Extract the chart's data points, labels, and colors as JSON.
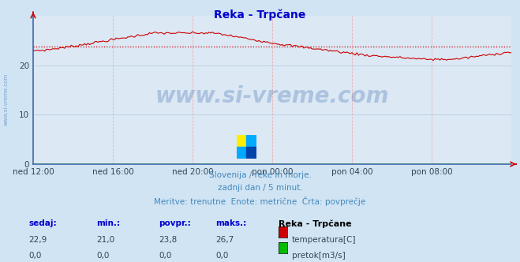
{
  "title": "Reka - Trpčane",
  "bg_color": "#d0e4f4",
  "plot_bg_color": "#dce8f4",
  "grid_color_h": "#b8cce0",
  "grid_color_v": "#e8b0b0",
  "temp_color": "#cc0000",
  "flow_color": "#00bb00",
  "avg_line_color": "#cc0000",
  "avg_value": 23.8,
  "y_min": 0,
  "y_max": 30,
  "y_ticks": [
    0,
    10,
    20
  ],
  "x_labels": [
    "ned 12:00",
    "ned 16:00",
    "ned 20:00",
    "pon 00:00",
    "pon 04:00",
    "pon 08:00"
  ],
  "subtitle1": "Slovenija / reke in morje.",
  "subtitle2": "zadnji dan / 5 minut.",
  "subtitle3": "Meritve: trenutne  Enote: metrične  Črta: povprečje",
  "label_sedaj": "sedaj:",
  "label_min": "min.:",
  "label_povpr": "povpr.:",
  "label_maks": "maks.:",
  "label_station": "Reka - Trpčane",
  "temp_sedaj": "22,9",
  "temp_min": "21,0",
  "temp_povpr": "23,8",
  "temp_maks": "26,7",
  "flow_sedaj": "0,0",
  "flow_min": "0,0",
  "flow_povpr": "0,0",
  "flow_maks": "0,0",
  "label_temp": "temperatura[C]",
  "label_flow": "pretok[m3/s]",
  "watermark": "www.si-vreme.com",
  "left_label": "www.si-vreme.com",
  "title_color": "#0000cc",
  "subtitle_color": "#4488bb",
  "tick_color": "#334455",
  "spine_color": "#4466aa",
  "header_color": "#0000cc",
  "axis_arrow_color": "#cc0000"
}
